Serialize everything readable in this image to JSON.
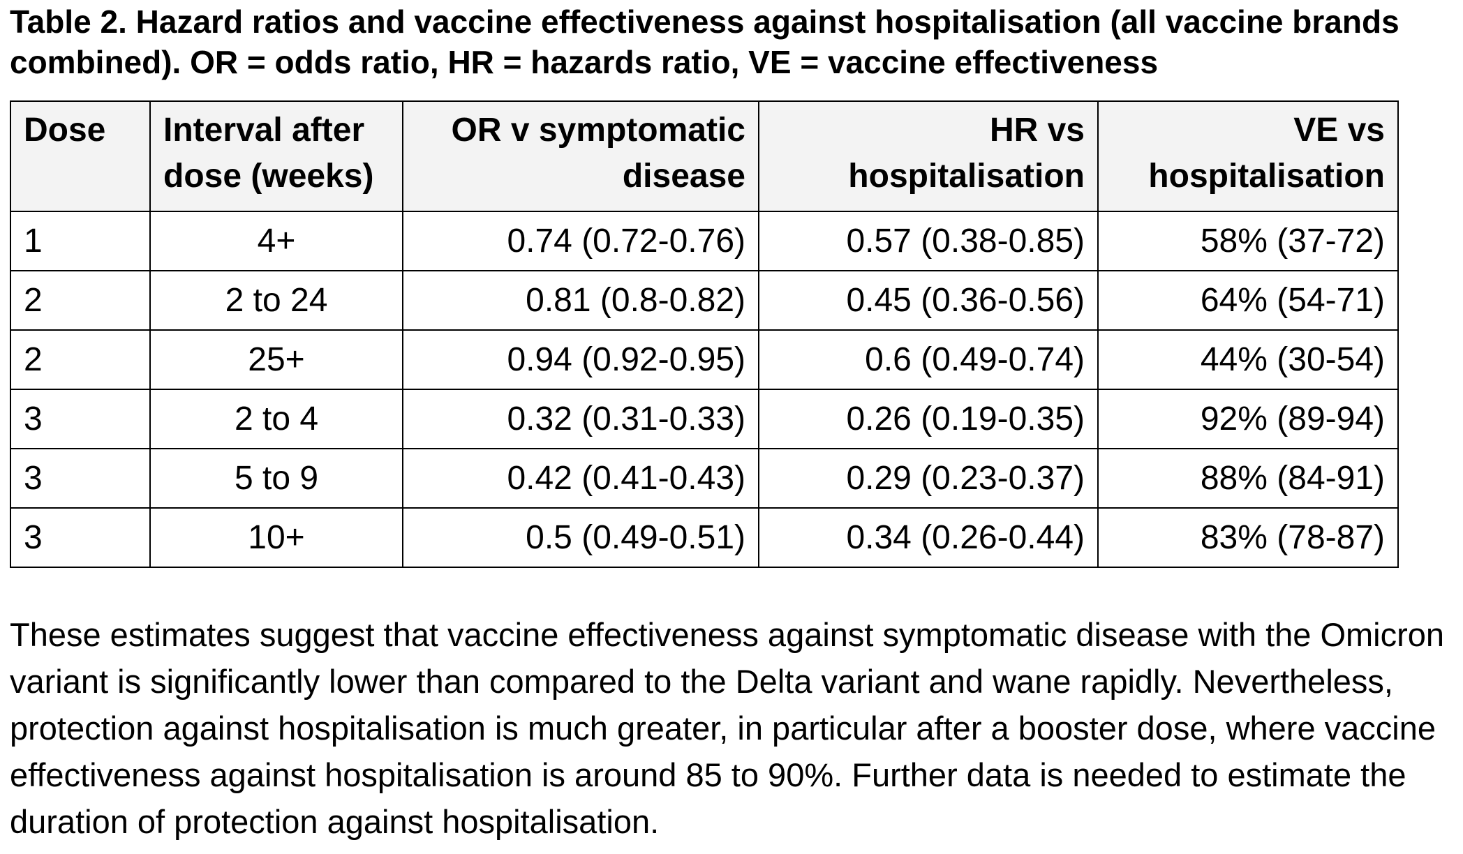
{
  "caption": "Table 2. Hazard ratios and vaccine effectiveness against hospitalisation (all vaccine brands combined). OR = odds ratio, HR = hazards ratio, VE = vaccine effectiveness",
  "table": {
    "headers": [
      "Dose",
      "Interval after dose (weeks)",
      "OR v symptomatic disease",
      "HR vs hospitalisation",
      "VE vs hospitalisation"
    ],
    "rows": [
      [
        "1",
        "4+",
        "0.74 (0.72-0.76)",
        "0.57 (0.38-0.85)",
        "58% (37-72)"
      ],
      [
        "2",
        "2 to 24",
        "0.81 (0.8-0.82)",
        "0.45 (0.36-0.56)",
        "64% (54-71)"
      ],
      [
        "2",
        "25+",
        "0.94 (0.92-0.95)",
        "0.6 (0.49-0.74)",
        "44% (30-54)"
      ],
      [
        "3",
        "2 to 4",
        "0.32 (0.31-0.33)",
        "0.26 (0.19-0.35)",
        "92% (89-94)"
      ],
      [
        "3",
        "5 to 9",
        "0.42 (0.41-0.43)",
        "0.29 (0.23-0.37)",
        "88% (84-91)"
      ],
      [
        "3",
        "10+",
        "0.5 (0.49-0.51)",
        "0.34 (0.26-0.44)",
        "83% (78-87)"
      ]
    ]
  },
  "paragraph": "These estimates suggest that vaccine effectiveness against symptomatic disease with the Omicron variant is significantly lower than compared to the Delta variant and wane rapidly. Nevertheless, protection against hospitalisation is much greater, in particular after a booster dose, where vaccine effectiveness against hospitalisation is around 85 to 90%. Further data is needed to estimate the duration of protection against hospitalisation."
}
